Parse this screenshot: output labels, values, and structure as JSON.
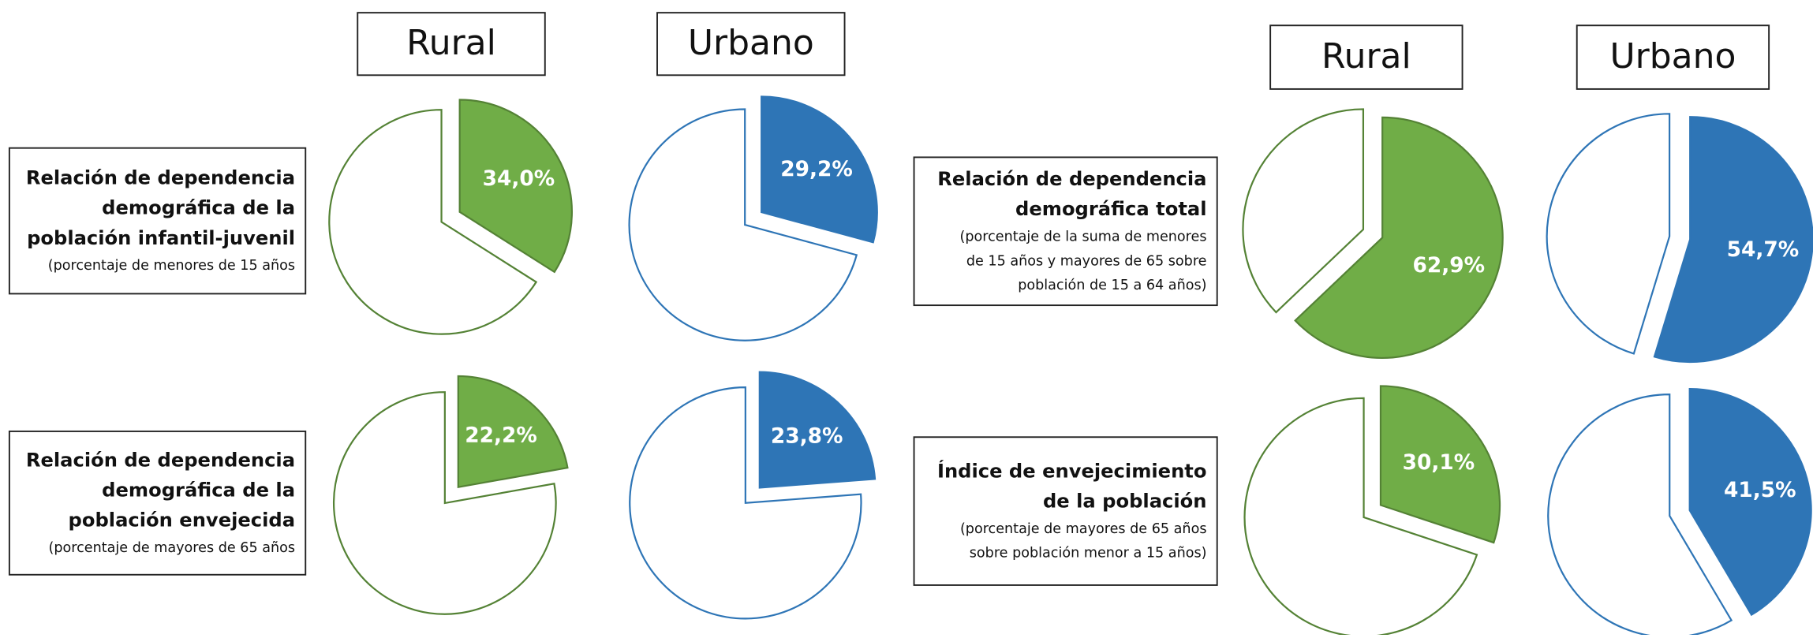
{
  "headers": [
    "Rural",
    "Urbano",
    "Rural",
    "Urbano"
  ],
  "indicators": [
    {
      "title_lines": [
        "Relación de dependencia",
        "demográfica de la",
        "población infantil-juvenil"
      ],
      "note_lines": [
        "(porcentaje de menores de 15 años"
      ]
    },
    {
      "title_lines": [
        "Relación de dependencia",
        "demográfica de la",
        "población envejecida"
      ],
      "note_lines": [
        "(porcentaje de mayores de 65 años"
      ]
    },
    {
      "title_lines": [
        "Relación de dependencia",
        "demográfica total"
      ],
      "note_lines": [
        "(porcentaje de la suma de menores",
        "de 15 años y mayores de 65 sobre",
        "población de 15 a 64 años)"
      ]
    },
    {
      "title_lines": [
        "Índice de envejecimiento",
        "de la población"
      ],
      "note_lines": [
        "(porcentaje de mayores de 65 años",
        "sobre población menor a 15 años)"
      ]
    }
  ],
  "chart_data": [
    {
      "type": "pie",
      "values": [
        34.0
      ],
      "value_labels": [
        "34,0%"
      ],
      "color": "#70ad47"
    },
    {
      "type": "pie",
      "values": [
        29.2
      ],
      "value_labels": [
        "29,2%"
      ],
      "color": "#2e75b6"
    },
    {
      "type": "pie",
      "values": [
        22.2
      ],
      "value_labels": [
        "22,2%"
      ],
      "color": "#70ad47"
    },
    {
      "type": "pie",
      "values": [
        23.8
      ],
      "value_labels": [
        "23,8%"
      ],
      "color": "#2e75b6"
    },
    {
      "type": "pie",
      "values": [
        62.9
      ],
      "value_labels": [
        "62,9%"
      ],
      "color": "#70ad47"
    },
    {
      "type": "pie",
      "values": [
        54.7
      ],
      "value_labels": [
        "54,7%"
      ],
      "color": "#2e75b6"
    },
    {
      "type": "pie",
      "values": [
        30.1
      ],
      "value_labels": [
        "30,1%"
      ],
      "color": "#70ad47"
    },
    {
      "type": "pie",
      "values": [
        41.5
      ],
      "value_labels": [
        "41,5%"
      ],
      "color": "#2e75b6"
    }
  ]
}
